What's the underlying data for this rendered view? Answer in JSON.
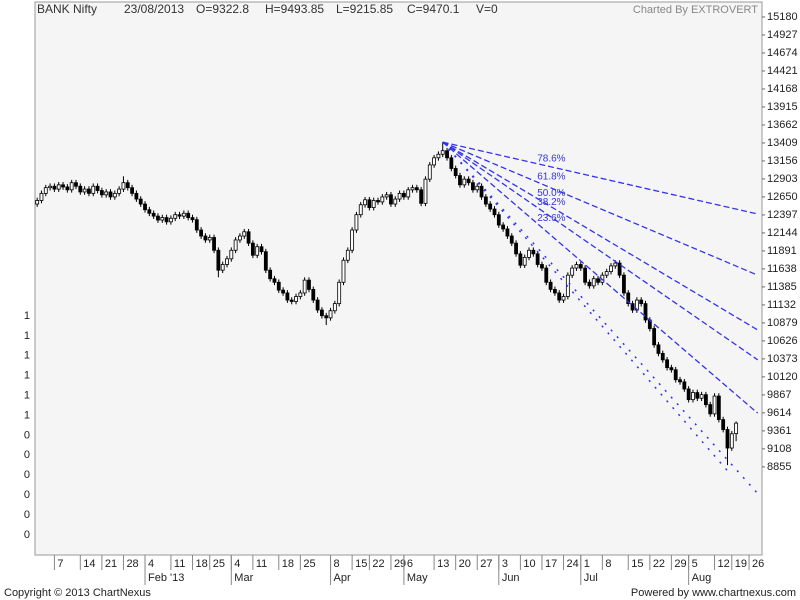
{
  "chart_data": {
    "type": "candlestick",
    "title": "BANK Nifty",
    "header_fields": [
      "23/08/2013",
      "O=9322.8",
      "H=9493.85",
      "L=9215.85",
      "C=9470.1",
      "V=0"
    ],
    "credit": "Charted By EXTROVERT",
    "up_color": "#ffffff",
    "down_color": "#000000",
    "outline_color": "#000000",
    "xlim": [
      -0.5,
      168
    ],
    "ylim": [
      7616,
      15306
    ],
    "yticks": [
      15180,
      14927,
      14674,
      14421,
      14168,
      13915,
      13662,
      13409,
      13156,
      12903,
      12650,
      12397,
      12144,
      11891,
      11638,
      11385,
      11132,
      10879,
      10626,
      10373,
      10120,
      9867,
      9614,
      9361,
      9108,
      8855
    ],
    "left_axis_labels": [
      1,
      1,
      1,
      1,
      1,
      1,
      0,
      0,
      0,
      0,
      0,
      0
    ],
    "xticks": [
      {
        "value": 4,
        "label": "7"
      },
      {
        "value": 10,
        "label": "14"
      },
      {
        "value": 15,
        "label": "21"
      },
      {
        "value": 20,
        "label": "28"
      },
      {
        "value": 25,
        "label": "4"
      },
      {
        "value": 31,
        "label": "11"
      },
      {
        "value": 36,
        "label": "18"
      },
      {
        "value": 40,
        "label": "25"
      },
      {
        "value": 45,
        "label": "4"
      },
      {
        "value": 50,
        "label": "11"
      },
      {
        "value": 56,
        "label": "18"
      },
      {
        "value": 61,
        "label": "25"
      },
      {
        "value": 68,
        "label": "8"
      },
      {
        "value": 73,
        "label": "15"
      },
      {
        "value": 77,
        "label": "22"
      },
      {
        "value": 82,
        "label": "29"
      },
      {
        "value": 85,
        "label": "6"
      },
      {
        "value": 92,
        "label": "13"
      },
      {
        "value": 97,
        "label": "20"
      },
      {
        "value": 102,
        "label": "27"
      },
      {
        "value": 107,
        "label": "3"
      },
      {
        "value": 112,
        "label": "10"
      },
      {
        "value": 117,
        "label": "17"
      },
      {
        "value": 122,
        "label": "24"
      },
      {
        "value": 126,
        "label": "1"
      },
      {
        "value": 131,
        "label": "8"
      },
      {
        "value": 137,
        "label": "15"
      },
      {
        "value": 142,
        "label": "22"
      },
      {
        "value": 147,
        "label": "29"
      },
      {
        "value": 151,
        "label": "5"
      },
      {
        "value": 157,
        "label": "12"
      },
      {
        "value": 161,
        "label": "19"
      },
      {
        "value": 165,
        "label": "26"
      }
    ],
    "month_ticks": [
      {
        "value": 25,
        "label": "Feb '13"
      },
      {
        "value": 45,
        "label": "Mar"
      },
      {
        "value": 68,
        "label": "Apr"
      },
      {
        "value": 85,
        "label": "May"
      },
      {
        "value": 107,
        "label": "Jun"
      },
      {
        "value": 126,
        "label": "Jul"
      },
      {
        "value": 151,
        "label": "Aug"
      }
    ],
    "candles": [
      [
        12550,
        12640,
        12510,
        12600
      ],
      [
        12600,
        12740,
        12560,
        12700
      ],
      [
        12700,
        12820,
        12660,
        12780
      ],
      [
        12780,
        12840,
        12740,
        12800
      ],
      [
        12800,
        12840,
        12720,
        12760
      ],
      [
        12760,
        12860,
        12720,
        12820
      ],
      [
        12820,
        12860,
        12750,
        12790
      ],
      [
        12790,
        12830,
        12710,
        12750
      ],
      [
        12750,
        12890,
        12710,
        12850
      ],
      [
        12850,
        12890,
        12760,
        12800
      ],
      [
        12800,
        12840,
        12680,
        12720
      ],
      [
        12720,
        12800,
        12680,
        12760
      ],
      [
        12760,
        12800,
        12660,
        12700
      ],
      [
        12700,
        12840,
        12660,
        12800
      ],
      [
        12800,
        12840,
        12700,
        12740
      ],
      [
        12740,
        12780,
        12640,
        12680
      ],
      [
        12680,
        12760,
        12640,
        12720
      ],
      [
        12720,
        12760,
        12610,
        12650
      ],
      [
        12650,
        12740,
        12610,
        12700
      ],
      [
        12700,
        12800,
        12660,
        12760
      ],
      [
        12760,
        12940,
        12720,
        12850
      ],
      [
        12850,
        12890,
        12740,
        12780
      ],
      [
        12780,
        12820,
        12660,
        12700
      ],
      [
        12700,
        12740,
        12580,
        12620
      ],
      [
        12620,
        12660,
        12510,
        12550
      ],
      [
        12550,
        12590,
        12430,
        12470
      ],
      [
        12470,
        12510,
        12380,
        12420
      ],
      [
        12420,
        12460,
        12340,
        12380
      ],
      [
        12380,
        12420,
        12285,
        12325
      ],
      [
        12325,
        12400,
        12285,
        12360
      ],
      [
        12360,
        12400,
        12260,
        12300
      ],
      [
        12300,
        12390,
        12260,
        12350
      ],
      [
        12350,
        12440,
        12310,
        12400
      ],
      [
        12400,
        12440,
        12340,
        12380
      ],
      [
        12380,
        12460,
        12340,
        12420
      ],
      [
        12420,
        12460,
        12320,
        12360
      ],
      [
        12360,
        12400,
        12290,
        12330
      ],
      [
        12330,
        12370,
        12145,
        12185
      ],
      [
        12185,
        12225,
        12060,
        12100
      ],
      [
        12100,
        12140,
        12005,
        12045
      ],
      [
        12045,
        12120,
        12005,
        12080
      ],
      [
        12080,
        12120,
        11860,
        11900
      ],
      [
        11900,
        11940,
        11520,
        11620
      ],
      [
        11620,
        11740,
        11580,
        11700
      ],
      [
        11700,
        11820,
        11660,
        11780
      ],
      [
        11780,
        11940,
        11740,
        11900
      ],
      [
        11900,
        12085,
        11860,
        12045
      ],
      [
        12045,
        12140,
        12005,
        12100
      ],
      [
        12100,
        12200,
        12060,
        12160
      ],
      [
        12160,
        12200,
        11960,
        12000
      ],
      [
        12000,
        12040,
        11790,
        11830
      ],
      [
        11830,
        11990,
        11790,
        11950
      ],
      [
        11950,
        11990,
        11840,
        11880
      ],
      [
        11880,
        11920,
        11580,
        11620
      ],
      [
        11620,
        11660,
        11460,
        11500
      ],
      [
        11500,
        11540,
        11410,
        11450
      ],
      [
        11450,
        11490,
        11300,
        11340
      ],
      [
        11340,
        11380,
        11260,
        11300
      ],
      [
        11300,
        11340,
        11160,
        11200
      ],
      [
        11200,
        11240,
        11140,
        11180
      ],
      [
        11180,
        11290,
        11140,
        11250
      ],
      [
        11250,
        11340,
        11210,
        11300
      ],
      [
        11300,
        11520,
        11260,
        11480
      ],
      [
        11480,
        11520,
        11310,
        11350
      ],
      [
        11350,
        11390,
        11160,
        11200
      ],
      [
        11200,
        11240,
        11020,
        11060
      ],
      [
        11060,
        11100,
        10940,
        10980
      ],
      [
        10980,
        11020,
        10850,
        10950
      ],
      [
        10950,
        11090,
        10910,
        11050
      ],
      [
        11050,
        11190,
        11010,
        11150
      ],
      [
        11150,
        11490,
        11110,
        11450
      ],
      [
        11450,
        11800,
        11410,
        11760
      ],
      [
        11760,
        11940,
        11720,
        11900
      ],
      [
        11900,
        12225,
        11860,
        12185
      ],
      [
        12185,
        12440,
        12145,
        12400
      ],
      [
        12400,
        12580,
        12360,
        12540
      ],
      [
        12540,
        12650,
        12500,
        12610
      ],
      [
        12610,
        12650,
        12460,
        12500
      ],
      [
        12500,
        12640,
        12460,
        12600
      ],
      [
        12600,
        12640,
        12540,
        12580
      ],
      [
        12580,
        12690,
        12540,
        12650
      ],
      [
        12650,
        12720,
        12610,
        12680
      ],
      [
        12680,
        12720,
        12510,
        12550
      ],
      [
        12550,
        12660,
        12510,
        12620
      ],
      [
        12620,
        12740,
        12580,
        12700
      ],
      [
        12700,
        12740,
        12610,
        12650
      ],
      [
        12650,
        12790,
        12610,
        12750
      ],
      [
        12750,
        12820,
        12710,
        12780
      ],
      [
        12780,
        12820,
        12710,
        12750
      ],
      [
        12750,
        12790,
        12520,
        12560
      ],
      [
        12560,
        12940,
        12520,
        12900
      ],
      [
        12900,
        13140,
        12860,
        13100
      ],
      [
        13100,
        13240,
        13060,
        13200
      ],
      [
        13200,
        13290,
        13160,
        13250
      ],
      [
        13250,
        13420,
        13210,
        13300
      ],
      [
        13300,
        13340,
        13160,
        13200
      ],
      [
        13200,
        13240,
        13010,
        13050
      ],
      [
        13050,
        13090,
        12910,
        12950
      ],
      [
        12950,
        12990,
        12780,
        12820
      ],
      [
        12820,
        12940,
        12780,
        12900
      ],
      [
        12900,
        12940,
        12810,
        12850
      ],
      [
        12850,
        12890,
        12710,
        12750
      ],
      [
        12750,
        12840,
        12710,
        12800
      ],
      [
        12800,
        12840,
        12610,
        12650
      ],
      [
        12650,
        12690,
        12510,
        12550
      ],
      [
        12550,
        12590,
        12440,
        12480
      ],
      [
        12480,
        12520,
        12360,
        12400
      ],
      [
        12400,
        12440,
        12215,
        12255
      ],
      [
        12255,
        12295,
        12160,
        12200
      ],
      [
        12200,
        12240,
        12060,
        12100
      ],
      [
        12100,
        12140,
        11960,
        12000
      ],
      [
        12000,
        12040,
        11810,
        11850
      ],
      [
        11850,
        11890,
        11650,
        11690
      ],
      [
        11690,
        11840,
        11650,
        11800
      ],
      [
        11800,
        11940,
        11760,
        11900
      ],
      [
        11900,
        11940,
        11810,
        11850
      ],
      [
        11850,
        11890,
        11660,
        11700
      ],
      [
        11700,
        11740,
        11610,
        11650
      ],
      [
        11650,
        11690,
        11410,
        11450
      ],
      [
        11450,
        11490,
        11310,
        11350
      ],
      [
        11350,
        11390,
        11260,
        11300
      ],
      [
        11300,
        11340,
        11160,
        11200
      ],
      [
        11200,
        11290,
        11160,
        11250
      ],
      [
        11250,
        11590,
        11210,
        11550
      ],
      [
        11550,
        11690,
        11510,
        11650
      ],
      [
        11650,
        11740,
        11610,
        11700
      ],
      [
        11700,
        11740,
        11610,
        11650
      ],
      [
        11650,
        11690,
        11410,
        11450
      ],
      [
        11450,
        11490,
        11360,
        11400
      ],
      [
        11400,
        11540,
        11360,
        11500
      ],
      [
        11500,
        11540,
        11410,
        11450
      ],
      [
        11450,
        11590,
        11410,
        11550
      ],
      [
        11550,
        11640,
        11510,
        11600
      ],
      [
        11600,
        11720,
        11560,
        11680
      ],
      [
        11680,
        11760,
        11640,
        11720
      ],
      [
        11720,
        11760,
        11510,
        11550
      ],
      [
        11550,
        11590,
        11260,
        11300
      ],
      [
        11300,
        11340,
        11110,
        11150
      ],
      [
        11150,
        11190,
        11020,
        11060
      ],
      [
        11060,
        11240,
        11020,
        11200
      ],
      [
        11200,
        11240,
        11110,
        11150
      ],
      [
        11150,
        11190,
        10880,
        10920
      ],
      [
        10920,
        10960,
        10760,
        10800
      ],
      [
        10800,
        10840,
        10530,
        10570
      ],
      [
        10570,
        10610,
        10410,
        10450
      ],
      [
        10450,
        10490,
        10320,
        10360
      ],
      [
        10360,
        10400,
        10210,
        10250
      ],
      [
        10250,
        10290,
        10180,
        10220
      ],
      [
        10220,
        10260,
        10040,
        10080
      ],
      [
        10080,
        10120,
        10010,
        10050
      ],
      [
        10050,
        10090,
        9910,
        9950
      ],
      [
        9950,
        9990,
        9760,
        9800
      ],
      [
        9800,
        9940,
        9760,
        9900
      ],
      [
        9900,
        9940,
        9780,
        9820
      ],
      [
        9820,
        9910,
        9780,
        9870
      ],
      [
        9870,
        9910,
        9690,
        9730
      ],
      [
        9730,
        9770,
        9560,
        9600
      ],
      [
        9600,
        9890,
        9560,
        9850
      ],
      [
        9850,
        9890,
        9480,
        9520
      ],
      [
        9520,
        9560,
        9340,
        9380
      ],
      [
        9380,
        9420,
        8880,
        9120
      ],
      [
        9120,
        9360,
        9080,
        9320
      ],
      [
        9322.8,
        9493.85,
        9215.85,
        9470.1
      ]
    ],
    "fibonacci_fan": {
      "color": "#3333ee",
      "anchor": [
        94,
        13420
      ],
      "end_index": 167,
      "lines": [
        {
          "label": "78.6%",
          "end": 12410
        },
        {
          "label": "61.8%",
          "end": 11550
        },
        {
          "label": "50.0%",
          "end": 10780
        },
        {
          "label": "38.2%",
          "end": 10360
        },
        {
          "label": "23.6%",
          "end": 9610
        }
      ],
      "dotted_lines": [
        {
          "end": [
            167,
            8480
          ]
        },
        {
          "end": [
            160,
            8800
          ]
        }
      ]
    }
  },
  "footer": {
    "left": "Copyright © 2013 ChartNexus",
    "right": "Powered by www.chartnexus.com"
  }
}
